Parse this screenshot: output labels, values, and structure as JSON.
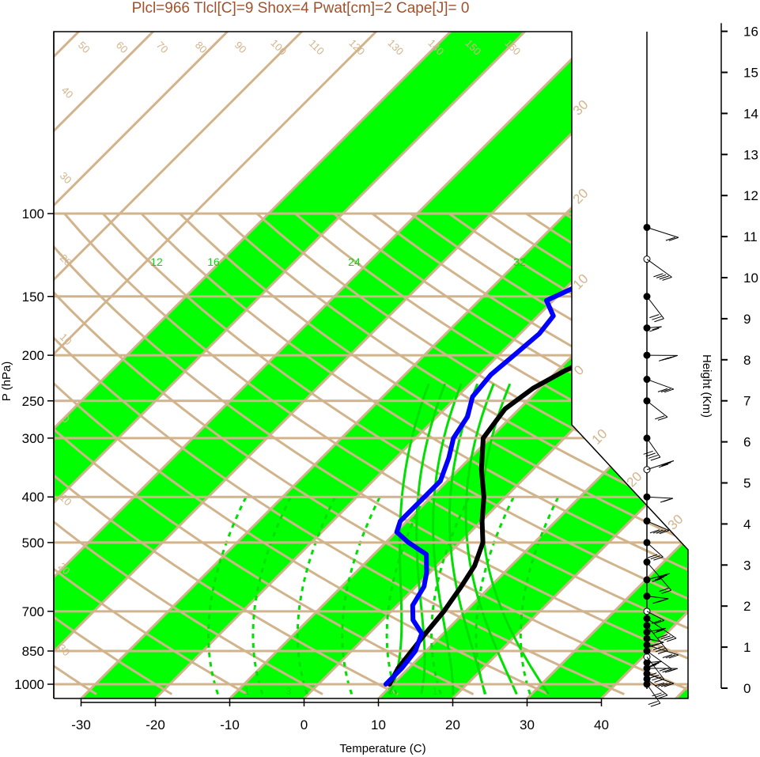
{
  "title": "Plcl=966 Tlcl[C]=9 Shox=4 Pwat[cm]=2 Cape[J]= 0",
  "colors": {
    "band_green": "#00ff00",
    "grid_tan": "#d2b48c",
    "temperature_line": "#000000",
    "dewpoint_line": "#0000ff",
    "mixing_ratio": "#00e000",
    "title_text": "#a0522d"
  },
  "chart_data": {
    "type": "line",
    "title": "Plcl=966 Tlcl[C]=9 Shox=4 Pwat[cm]=2 Cape[J]= 0",
    "xlabel": "Temperature (C)",
    "ylabel": "P (hPa)",
    "right_axis_label": "Height (Km)",
    "y_scale": "log-pressure (inverted)",
    "xlim": [
      -34,
      52
    ],
    "ylim": [
      1050,
      100
    ],
    "x_ticks": [
      "-30",
      "-20",
      "-10",
      "0",
      "10",
      "20",
      "30",
      "40"
    ],
    "y_ticks": [
      "100",
      "150",
      "200",
      "250",
      "300",
      "400",
      "500",
      "700",
      "850",
      "1000"
    ],
    "height_ticks": [
      "0",
      "1",
      "2",
      "3",
      "4",
      "5",
      "6",
      "7",
      "8",
      "9",
      "10",
      "11",
      "12",
      "13",
      "14",
      "15",
      "16"
    ],
    "isotherm_labels_top": [
      "50",
      "60",
      "70",
      "80",
      "90",
      "100",
      "110",
      "120",
      "130",
      "140",
      "150",
      "160"
    ],
    "isotherm_labels_right": [
      "30",
      "20",
      "10",
      "0",
      "10",
      "20",
      "30"
    ],
    "isotherm_labels_left": [
      "40",
      "30",
      "20",
      "10",
      "0",
      "10",
      "20",
      "30"
    ],
    "mixing_ratio_labels": [
      "12",
      "16",
      "24",
      "32"
    ],
    "mixing_ratio_bottom_labels": [
      "1",
      "3",
      "8",
      "1"
    ],
    "series": [
      {
        "name": "Temperature",
        "points": [
          [
            11.5,
            1000
          ],
          [
            10.5,
            925
          ],
          [
            10,
            850
          ],
          [
            9.5,
            780
          ],
          [
            9,
            700
          ],
          [
            8,
            620
          ],
          [
            7,
            560
          ],
          [
            5,
            500
          ],
          [
            2,
            450
          ],
          [
            -1,
            400
          ],
          [
            -5,
            350
          ],
          [
            -9,
            300
          ],
          [
            -10,
            260
          ],
          [
            -9,
            235
          ],
          [
            -7,
            215
          ],
          [
            -3,
            190
          ],
          [
            2,
            170
          ],
          [
            9,
            153
          ],
          [
            11,
            140
          ],
          [
            12.5,
            125
          ],
          [
            14.5,
            112
          ],
          [
            17,
            106
          ]
        ]
      },
      {
        "name": "Dewpoint",
        "points": [
          [
            11,
            1000
          ],
          [
            11,
            925
          ],
          [
            10.5,
            850
          ],
          [
            9,
            780
          ],
          [
            6,
            730
          ],
          [
            4,
            680
          ],
          [
            3,
            620
          ],
          [
            1.5,
            580
          ],
          [
            -1,
            530
          ],
          [
            -5,
            500
          ],
          [
            -8,
            475
          ],
          [
            -9,
            450
          ],
          [
            -9,
            400
          ],
          [
            -9,
            370
          ],
          [
            -11,
            330
          ],
          [
            -13,
            300
          ],
          [
            -14,
            270
          ],
          [
            -16,
            245
          ],
          [
            -16.5,
            220
          ],
          [
            -16,
            200
          ],
          [
            -15.5,
            180
          ],
          [
            -16,
            165
          ],
          [
            -19,
            153
          ],
          [
            -15,
            135
          ],
          [
            -11,
            117
          ],
          [
            -7.5,
            105
          ]
        ]
      }
    ],
    "wind_levels_hpa": [
      1000,
      975,
      950,
      925,
      900,
      875,
      850,
      825,
      800,
      775,
      750,
      725,
      700,
      650,
      600,
      550,
      500,
      450,
      400,
      350,
      300,
      250,
      225,
      200,
      175,
      150,
      125,
      107
    ]
  }
}
